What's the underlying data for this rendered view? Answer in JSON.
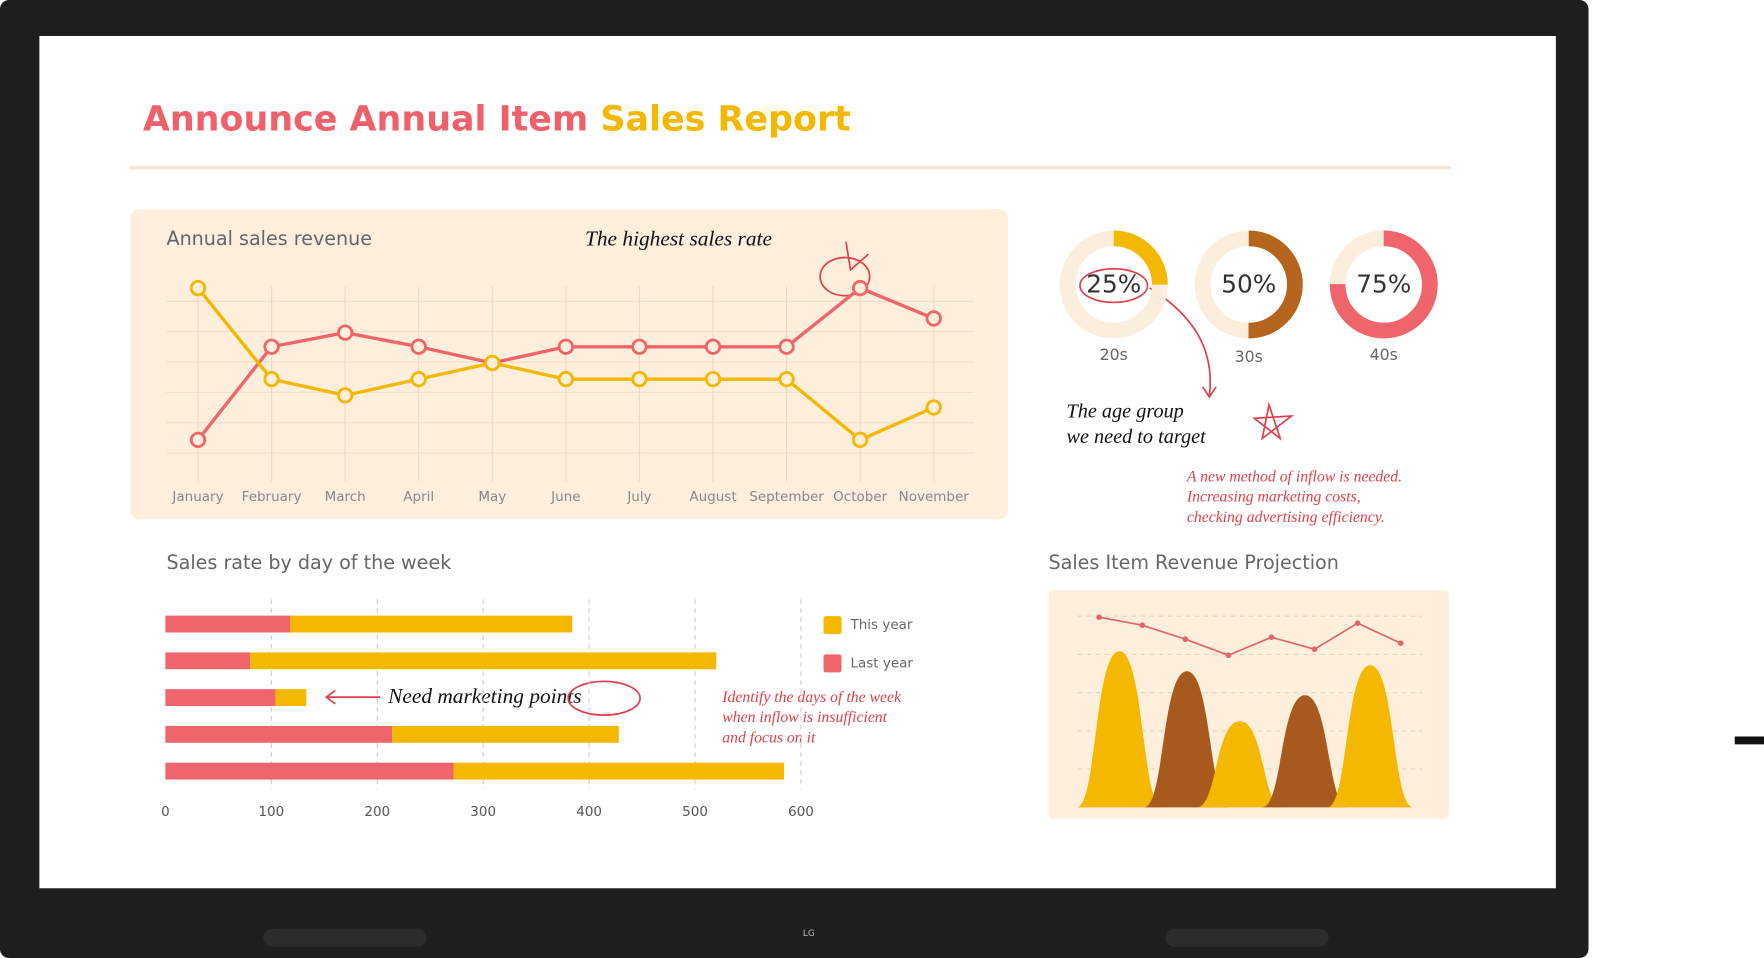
{
  "title": "Announce Annual Item",
  "title_highlight": "Sales Report",
  "brand": "LG",
  "annotations": {
    "highest": "The highest sales rate",
    "age_group": [
      "The age group",
      "we need to target"
    ],
    "inflow": [
      "A new method of inflow is needed.",
      "Increasing marketing costs,",
      "checking advertising efficiency."
    ],
    "marketing": "Need marketing points",
    "days": [
      "Identify the days of the week",
      "when inflow is insufficient",
      "and focus on it"
    ]
  },
  "chart_data": [
    {
      "type": "line",
      "title": "Annual sales revenue",
      "categories": [
        "January",
        "February",
        "March",
        "April",
        "May",
        "June",
        "July",
        "August",
        "September",
        "October",
        "November"
      ],
      "ylim": [
        0,
        100
      ],
      "series": [
        {
          "color": "#f0646c",
          "values": [
            16,
            62,
            69,
            62,
            54,
            62,
            62,
            62,
            62,
            91,
            76
          ]
        },
        {
          "color": "#f5b800",
          "values": [
            91,
            46,
            38,
            46,
            54,
            46,
            46,
            46,
            46,
            16,
            32
          ]
        }
      ]
    },
    {
      "type": "donut",
      "categories": [
        "20s",
        "30s",
        "40s"
      ],
      "values": [
        25,
        50,
        75
      ],
      "value_labels": [
        "25%",
        "50%",
        "75%"
      ],
      "colors": [
        "#f5b800",
        "#b5651d",
        "#f0646c"
      ]
    },
    {
      "type": "hbar",
      "title": "Sales rate by day of the week",
      "categories": [
        null,
        null,
        null,
        null,
        null
      ],
      "xlim": [
        0,
        600
      ],
      "xticks": [
        0,
        100,
        200,
        300,
        400,
        500,
        600
      ],
      "series": [
        {
          "name": "Last year",
          "color": "#f0646c",
          "values": [
            118,
            80,
            104,
            214,
            272
          ]
        },
        {
          "name": "This year",
          "color": "#f5b800",
          "values": [
            266,
            440,
            29,
            214,
            312
          ]
        }
      ]
    },
    {
      "type": "hump",
      "title": "Sales Item Revenue Projection",
      "ylim": [
        0,
        100
      ],
      "values": [
        78,
        68,
        43,
        56,
        71
      ],
      "colors": [
        "#f5b800",
        "#a85a1e",
        "#f5b800",
        "#a85a1e",
        "#f5b800"
      ],
      "trend": {
        "color": "#e4646c",
        "values": [
          95,
          91,
          84,
          76,
          85,
          79,
          92,
          82
        ]
      }
    }
  ]
}
